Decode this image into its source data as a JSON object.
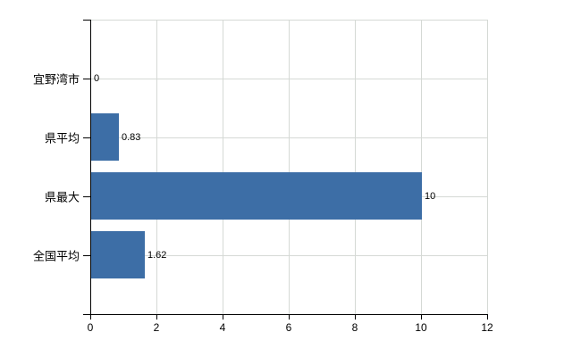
{
  "chart_data": {
    "type": "bar",
    "orientation": "horizontal",
    "title": "",
    "xlabel": "",
    "ylabel": "",
    "categories": [
      "宜野湾市",
      "県平均",
      "県最大",
      "全国平均"
    ],
    "values": [
      0,
      0.83,
      10,
      1.62
    ],
    "value_labels": [
      "0",
      "0.83",
      "10",
      "1.62"
    ],
    "x_ticks": [
      0,
      2,
      4,
      6,
      8,
      10,
      12
    ],
    "x_tick_labels": [
      "0",
      "2",
      "4",
      "6",
      "8",
      "10",
      "12"
    ],
    "xlim": [
      0,
      12
    ],
    "grid": "both",
    "legend_position": "none",
    "colors": {
      "bar": "#3d6ea6",
      "gridline": "#d5d9d5",
      "axis": "#000000",
      "text": "#000000",
      "background": "#ffffff"
    }
  }
}
